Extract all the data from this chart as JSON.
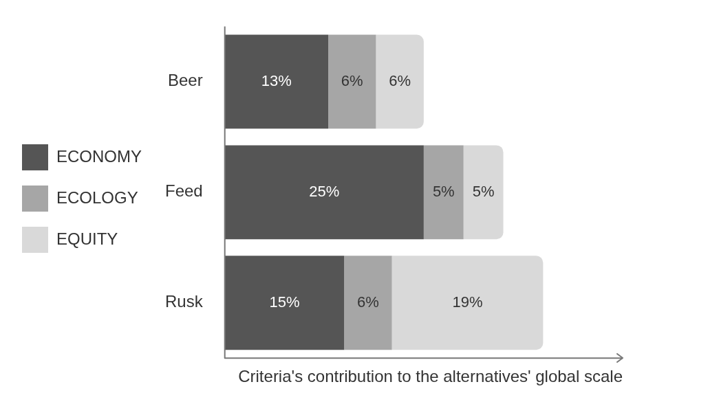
{
  "chart_data": {
    "type": "bar",
    "orientation": "horizontal",
    "stacked": true,
    "categories": [
      "Beer",
      "Feed",
      "Rusk"
    ],
    "xlabel": "Criteria's contribution to the alternatives' global scale",
    "legend": "left",
    "grid": false,
    "series": [
      {
        "name": "ECONOMY",
        "color": "#555555",
        "values": [
          13,
          25,
          15
        ],
        "value_labels": [
          "13%",
          "25%",
          "15%"
        ]
      },
      {
        "name": "ECOLOGY",
        "color": "#a6a6a6",
        "values": [
          6,
          5,
          6
        ],
        "value_labels": [
          "6%",
          "5%",
          "6%"
        ]
      },
      {
        "name": "EQUITY",
        "color": "#d9d9d9",
        "values": [
          6,
          5,
          19
        ],
        "value_labels": [
          "6%",
          "5%",
          "19%"
        ]
      }
    ]
  }
}
